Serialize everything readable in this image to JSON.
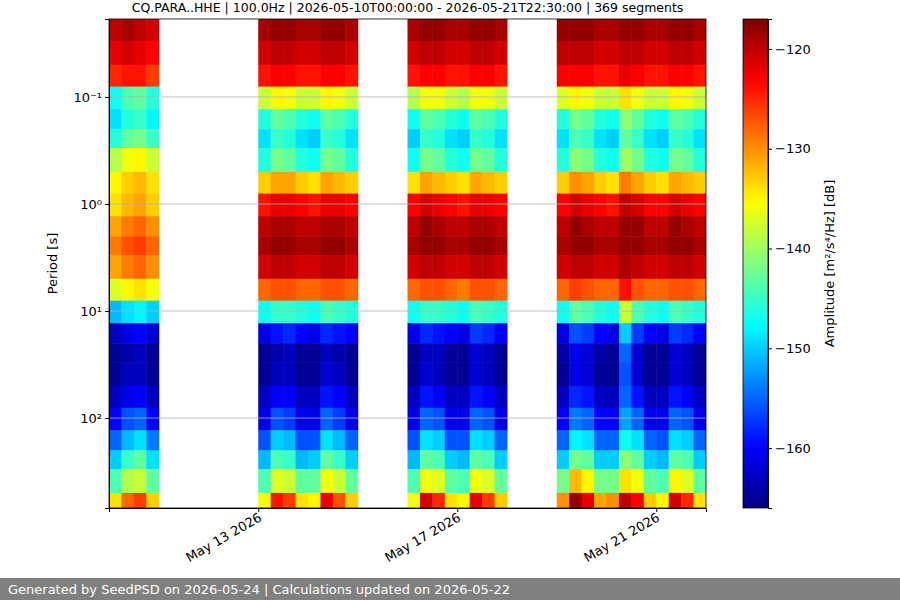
{
  "chart_data": {
    "type": "heatmap",
    "title": "CQ.PARA..HHE | 100.0Hz | 2026-05-10T00:00:00 - 2026-05-21T22:30:00 | 369 segments",
    "footer": "Generated by SeedPSD on 2026-05-24 | Calculations updated on 2026-05-22",
    "ylabel": "Period [s]",
    "log": "y",
    "grid": true,
    "xlim": [
      "2026-05-10T00:00",
      "2026-05-22T00:00"
    ],
    "xticks": [
      {
        "value": "2026-05-13T00:00",
        "label": "May 13 2026"
      },
      {
        "value": "2026-05-17T00:00",
        "label": "May 17 2026"
      },
      {
        "value": "2026-05-21T00:00",
        "label": "May 21 2026"
      }
    ],
    "ylim": [
      0.0187,
      692
    ],
    "yticks": [
      {
        "value": 0.1,
        "label": "10⁻¹"
      },
      {
        "value": 1,
        "label": "10⁰"
      },
      {
        "value": 10,
        "label": "10¹"
      },
      {
        "value": 100,
        "label": "10²"
      }
    ],
    "x_bins": [
      "2026-05-10T00:00",
      "2026-05-10T06:00",
      "2026-05-10T12:00",
      "2026-05-10T18:00",
      "2026-05-11T00:00",
      "2026-05-11T06:00",
      "2026-05-11T12:00",
      "2026-05-11T18:00",
      "2026-05-12T00:00",
      "2026-05-12T06:00",
      "2026-05-12T12:00",
      "2026-05-12T18:00",
      "2026-05-13T00:00",
      "2026-05-13T06:00",
      "2026-05-13T12:00",
      "2026-05-13T18:00",
      "2026-05-14T00:00",
      "2026-05-14T06:00",
      "2026-05-14T12:00",
      "2026-05-14T18:00",
      "2026-05-15T00:00",
      "2026-05-15T06:00",
      "2026-05-15T12:00",
      "2026-05-15T18:00",
      "2026-05-16T00:00",
      "2026-05-16T06:00",
      "2026-05-16T12:00",
      "2026-05-16T18:00",
      "2026-05-17T00:00",
      "2026-05-17T06:00",
      "2026-05-17T12:00",
      "2026-05-17T18:00",
      "2026-05-18T00:00",
      "2026-05-18T06:00",
      "2026-05-18T12:00",
      "2026-05-18T18:00",
      "2026-05-19T00:00",
      "2026-05-19T06:00",
      "2026-05-19T12:00",
      "2026-05-19T18:00",
      "2026-05-20T00:00",
      "2026-05-20T06:00",
      "2026-05-20T12:00",
      "2026-05-20T18:00",
      "2026-05-21T00:00",
      "2026-05-21T06:00",
      "2026-05-21T12:00",
      "2026-05-21T18:00",
      "2026-05-22T00:00"
    ],
    "y_bins": [
      0.0187,
      0.03,
      0.05,
      0.08,
      0.13,
      0.2,
      0.3,
      0.5,
      0.8,
      1.3,
      2,
      3,
      5,
      8,
      13,
      20,
      30,
      50,
      80,
      130,
      200,
      300,
      500,
      692
    ],
    "z": [
      [
        -120,
        -122,
        -125,
        -147,
        -149,
        -146,
        -139,
        -135,
        -134,
        -131,
        -129,
        -131,
        -137,
        -151,
        -163,
        -165,
        -165,
        -163,
        -160,
        -155,
        -150,
        -144,
        -134
      ],
      [
        -119,
        -121,
        -124,
        -144,
        -146,
        -143,
        -136,
        -133,
        -132,
        -129,
        -127,
        -129,
        -135,
        -149,
        -161,
        -164,
        -163,
        -161,
        -156,
        -151,
        -145,
        -139,
        -128
      ],
      [
        -120,
        -122,
        -124,
        -143,
        -145,
        -142,
        -135,
        -132,
        -131,
        -128,
        -126,
        -128,
        -134,
        -148,
        -160,
        -163,
        -163,
        -160,
        -155,
        -149,
        -143,
        -138,
        -126
      ],
      [
        -121,
        -123,
        -126,
        -146,
        -148,
        -145,
        -138,
        -134,
        -133,
        -130,
        -128,
        -130,
        -136,
        -150,
        -162,
        -165,
        -165,
        -163,
        -160,
        -154,
        -149,
        -143,
        -133
      ],
      null,
      null,
      null,
      null,
      null,
      null,
      null,
      null,
      [
        -119,
        -121,
        -124,
        -138,
        -146,
        -149,
        -146,
        -133,
        -124,
        -120,
        -119,
        -121,
        -128,
        -147,
        -161,
        -165,
        -165,
        -163,
        -161,
        -156,
        -151,
        -144,
        -136
      ],
      [
        -118,
        -120,
        -123,
        -135,
        -143,
        -145,
        -142,
        -131,
        -122,
        -119,
        -118,
        -120,
        -127,
        -145,
        -159,
        -164,
        -163,
        -160,
        -156,
        -150,
        -144,
        -137,
        -124
      ],
      [
        -118,
        -120,
        -123,
        -136,
        -144,
        -146,
        -143,
        -131,
        -122,
        -119,
        -118,
        -120,
        -127,
        -145,
        -158,
        -163,
        -163,
        -160,
        -157,
        -151,
        -145,
        -138,
        -126
      ],
      [
        -119,
        -121,
        -124,
        -138,
        -146,
        -149,
        -146,
        -133,
        -123,
        -120,
        -119,
        -121,
        -128,
        -146,
        -160,
        -165,
        -165,
        -163,
        -161,
        -156,
        -151,
        -143,
        -134
      ],
      [
        -119,
        -121,
        -124,
        -138,
        -147,
        -150,
        -147,
        -134,
        -124,
        -120,
        -119,
        -121,
        -128,
        -147,
        -161,
        -165,
        -165,
        -163,
        -161,
        -156,
        -150,
        -143,
        -135
      ],
      [
        -118,
        -120,
        -123,
        -135,
        -143,
        -145,
        -142,
        -131,
        -122,
        -119,
        -118,
        -120,
        -127,
        -144,
        -158,
        -163,
        -162,
        -159,
        -155,
        -149,
        -143,
        -136,
        -122
      ],
      [
        -118,
        -120,
        -123,
        -136,
        -144,
        -146,
        -143,
        -132,
        -122,
        -119,
        -118,
        -120,
        -127,
        -145,
        -159,
        -164,
        -163,
        -160,
        -157,
        -151,
        -145,
        -138,
        -127
      ],
      [
        -119,
        -121,
        -124,
        -138,
        -146,
        -149,
        -146,
        -133,
        -123,
        -120,
        -119,
        -121,
        -128,
        -146,
        -160,
        -165,
        -165,
        -163,
        -161,
        -155,
        -150,
        -143,
        -133
      ],
      null,
      null,
      null,
      null,
      [
        -119,
        -121,
        -124,
        -139,
        -147,
        -150,
        -147,
        -134,
        -123,
        -120,
        -119,
        -121,
        -128,
        -147,
        -161,
        -165,
        -165,
        -163,
        -161,
        -156,
        -151,
        -144,
        -136
      ],
      [
        -118,
        -120,
        -123,
        -136,
        -143,
        -145,
        -142,
        -131,
        -121,
        -118,
        -118,
        -120,
        -127,
        -145,
        -158,
        -163,
        -162,
        -159,
        -155,
        -149,
        -143,
        -136,
        -121
      ],
      [
        -118,
        -120,
        -123,
        -136,
        -144,
        -146,
        -143,
        -132,
        -122,
        -119,
        -118,
        -120,
        -127,
        -145,
        -159,
        -163,
        -163,
        -160,
        -156,
        -150,
        -144,
        -137,
        -125
      ],
      [
        -119,
        -121,
        -124,
        -138,
        -146,
        -149,
        -146,
        -133,
        -123,
        -120,
        -119,
        -121,
        -128,
        -146,
        -160,
        -165,
        -165,
        -163,
        -161,
        -156,
        -150,
        -143,
        -134
      ],
      [
        -119,
        -121,
        -124,
        -139,
        -147,
        -150,
        -147,
        -134,
        -124,
        -120,
        -119,
        -121,
        -129,
        -147,
        -161,
        -165,
        -165,
        -163,
        -161,
        -156,
        -151,
        -144,
        -135
      ],
      [
        -118,
        -120,
        -123,
        -136,
        -143,
        -145,
        -142,
        -131,
        -122,
        -119,
        -118,
        -120,
        -127,
        -144,
        -157,
        -162,
        -162,
        -159,
        -155,
        -149,
        -143,
        -136,
        -122
      ],
      [
        -118,
        -120,
        -123,
        -136,
        -144,
        -146,
        -143,
        -132,
        -122,
        -119,
        -118,
        -120,
        -127,
        -145,
        -158,
        -163,
        -163,
        -160,
        -156,
        -150,
        -144,
        -137,
        -126
      ],
      [
        -119,
        -121,
        -124,
        -138,
        -146,
        -149,
        -146,
        -133,
        -123,
        -120,
        -119,
        -121,
        -128,
        -146,
        -160,
        -165,
        -165,
        -163,
        -161,
        -155,
        -150,
        -143,
        -133
      ],
      null,
      null,
      null,
      null,
      [
        -118,
        -120,
        -123,
        -137,
        -146,
        -149,
        -146,
        -133,
        -123,
        -120,
        -119,
        -121,
        -128,
        -147,
        -161,
        -164,
        -165,
        -163,
        -160,
        -155,
        -150,
        -142,
        -130
      ],
      [
        -118,
        -120,
        -123,
        -135,
        -142,
        -144,
        -141,
        -130,
        -121,
        -118,
        -118,
        -120,
        -126,
        -143,
        -156,
        -161,
        -161,
        -158,
        -154,
        -148,
        -142,
        -132,
        -118
      ],
      [
        -118,
        -120,
        -123,
        -136,
        -143,
        -145,
        -142,
        -131,
        -122,
        -119,
        -118,
        -120,
        -127,
        -144,
        -157,
        -162,
        -162,
        -159,
        -155,
        -149,
        -143,
        -135,
        -122
      ],
      [
        -119,
        -121,
        -124,
        -138,
        -146,
        -149,
        -146,
        -133,
        -123,
        -120,
        -119,
        -121,
        -128,
        -146,
        -160,
        -164,
        -165,
        -163,
        -160,
        -155,
        -150,
        -142,
        -131
      ],
      [
        -119,
        -121,
        -124,
        -138,
        -147,
        -150,
        -147,
        -134,
        -124,
        -120,
        -119,
        -121,
        -128,
        -147,
        -161,
        -165,
        -165,
        -163,
        -160,
        -155,
        -150,
        -142,
        -130
      ],
      [
        -118,
        -120,
        -122,
        -134,
        -141,
        -143,
        -140,
        -129,
        -120,
        -118,
        -118,
        -119,
        -124,
        -138,
        -150,
        -155,
        -156,
        -155,
        -152,
        -147,
        -141,
        -134,
        -120
      ],
      [
        -118,
        -120,
        -123,
        -136,
        -143,
        -145,
        -142,
        -131,
        -121,
        -118,
        -118,
        -120,
        -127,
        -144,
        -157,
        -162,
        -162,
        -159,
        -155,
        -149,
        -143,
        -136,
        -123
      ],
      [
        -119,
        -121,
        -124,
        -138,
        -146,
        -149,
        -146,
        -133,
        -123,
        -120,
        -119,
        -121,
        -128,
        -146,
        -160,
        -165,
        -165,
        -163,
        -161,
        -155,
        -150,
        -143,
        -133
      ],
      [
        -119,
        -121,
        -124,
        -138,
        -147,
        -150,
        -147,
        -134,
        -123,
        -120,
        -119,
        -121,
        -128,
        -147,
        -161,
        -165,
        -165,
        -163,
        -161,
        -156,
        -151,
        -144,
        -135
      ],
      [
        -118,
        -120,
        -123,
        -135,
        -143,
        -145,
        -142,
        -131,
        -121,
        -118,
        -118,
        -120,
        -127,
        -144,
        -157,
        -162,
        -162,
        -159,
        -155,
        -149,
        -143,
        -135,
        -121
      ],
      [
        -118,
        -120,
        -123,
        -136,
        -144,
        -146,
        -143,
        -132,
        -122,
        -119,
        -118,
        -120,
        -127,
        -145,
        -158,
        -163,
        -163,
        -160,
        -156,
        -150,
        -144,
        -137,
        -125
      ],
      [
        -119,
        -121,
        -124,
        -138,
        -146,
        -149,
        -146,
        -133,
        -123,
        -120,
        -119,
        -121,
        -128,
        -146,
        -160,
        -165,
        -165,
        -163,
        -161,
        -155,
        -150,
        -143,
        -134
      ]
    ],
    "colorbar": {
      "range": [
        -166,
        -117
      ],
      "ticks": [
        {
          "value": -120,
          "label": "−120"
        },
        {
          "value": -130,
          "label": "−130"
        },
        {
          "value": -140,
          "label": "−140"
        },
        {
          "value": -150,
          "label": "−150"
        },
        {
          "value": -160,
          "label": "−160"
        }
      ],
      "label": "Amplitude [m²/s⁴/Hz] [dB]"
    }
  }
}
